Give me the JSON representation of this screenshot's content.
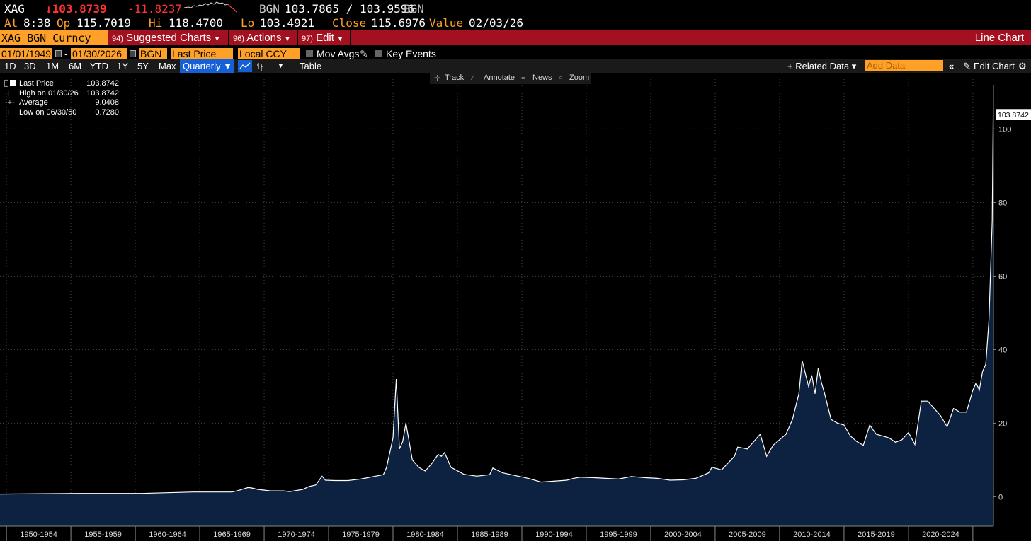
{
  "quote": {
    "ticker": "XAG",
    "last": "↓103.8739",
    "change": "-11.8237",
    "source": "BGN",
    "bid_ask": "103.7865 / 103.9596",
    "source2": "BGN",
    "at_label": "At",
    "time": "8:38",
    "open_label": "Op",
    "open": "115.7019",
    "high_label": "Hi",
    "high": "118.4700",
    "low_label": "Lo",
    "low": "103.4921",
    "close_label": "Close",
    "close": "115.6976",
    "value_label": "Value",
    "value_date": "02/03/26"
  },
  "command_bar": {
    "security": "XAG BGN Curncy",
    "items": [
      {
        "num": "94)",
        "label": "Suggested Charts"
      },
      {
        "num": "96)",
        "label": "Actions"
      },
      {
        "num": "97)",
        "label": "Edit"
      }
    ],
    "chart_type": "Line Chart"
  },
  "settings": {
    "start_date": "01/01/1949",
    "dash": "-",
    "end_date": "01/30/2026",
    "source": "BGN",
    "field": "Last Price",
    "currency": "Local CCY",
    "mov_avgs": "Mov Avgs",
    "key_events": "Key Events"
  },
  "toolbar": {
    "periods": [
      "1D",
      "3D",
      "1M",
      "6M",
      "YTD",
      "1Y",
      "5Y",
      "Max"
    ],
    "frequency": "Quarterly ▼",
    "table": "Table",
    "related_data": "+ Related Data ▾",
    "add_data_placeholder": "Add Data",
    "edit_chart": "Edit Chart"
  },
  "tools": {
    "track": "Track",
    "annotate": "Annotate",
    "news": "News",
    "zoom": "Zoom"
  },
  "legend": {
    "rows": [
      {
        "key": "Last Price",
        "value": "103.8742"
      },
      {
        "key": "High on 01/30/26",
        "value": "103.8742"
      },
      {
        "key": "Average",
        "value": "9.0408"
      },
      {
        "key": "Low on 06/30/50",
        "value": "0.7280"
      }
    ]
  },
  "colors": {
    "line": "#ffffff",
    "area": "#0c2240",
    "grid": "#444444",
    "accent_orange": "#ffa028",
    "accent_red": "#a3101f"
  },
  "chart_data": {
    "type": "area",
    "title": "",
    "xlabel": "",
    "ylabel": "",
    "ylim": [
      -8,
      112
    ],
    "yticks": [
      0,
      20,
      40,
      60,
      80,
      100
    ],
    "last_value_label": "103.8742",
    "x_tick_labels": [
      "1950-1954",
      "1955-1959",
      "1960-1964",
      "1965-1969",
      "1970-1974",
      "1975-1979",
      "1980-1984",
      "1985-1989",
      "1990-1994",
      "1995-1999",
      "2000-2004",
      "2005-2009",
      "2010-2014",
      "2015-2019",
      "2020-2024"
    ],
    "xlim": [
      1949.0,
      2026.1
    ],
    "series": [
      {
        "x": [
          1949.0,
          1955.0,
          1960.0,
          1963.0,
          1964.0,
          1967.0,
          1967.5,
          1968.25,
          1968.5,
          1969.0,
          1970.0,
          1971.0,
          1971.5,
          1972.5,
          1973.0,
          1973.5,
          1974.0,
          1974.25,
          1975.0,
          1976.0,
          1977.0,
          1978.0,
          1978.75,
          1979.0,
          1979.5,
          1979.75,
          1980.0,
          1980.25,
          1980.5,
          1980.75,
          1981.0,
          1981.5,
          1982.0,
          1982.5,
          1983.0,
          1983.25,
          1983.5,
          1984.0,
          1985.0,
          1986.0,
          1987.0,
          1987.25,
          1988.0,
          1990.0,
          1991.0,
          1993.0,
          1993.5,
          1994.0,
          1995.0,
          1996.0,
          1997.0,
          1998.0,
          1999.0,
          2000.0,
          2001.0,
          2002.0,
          2003.0,
          2004.0,
          2004.25,
          2005.0,
          2006.0,
          2006.25,
          2007.0,
          2008.0,
          2008.5,
          2009.0,
          2010.0,
          2010.5,
          2011.0,
          2011.25,
          2011.75,
          2012.0,
          2012.25,
          2012.5,
          2012.75,
          2013.0,
          2013.5,
          2014.0,
          2014.5,
          2015.0,
          2015.5,
          2016.0,
          2016.5,
          2017.0,
          2017.5,
          2018.0,
          2018.5,
          2019.0,
          2019.5,
          2020.0,
          2020.5,
          2021.0,
          2021.5,
          2022.0,
          2022.5,
          2023.0,
          2023.5,
          2024.0,
          2024.5,
          2024.75,
          2025.0,
          2025.25,
          2025.5,
          2025.75,
          2026.0,
          2026.08
        ],
        "y": [
          0.728,
          0.9,
          0.91,
          1.2,
          1.29,
          1.29,
          1.7,
          2.5,
          2.4,
          2.0,
          1.6,
          1.6,
          1.4,
          2.0,
          2.8,
          3.2,
          5.6,
          4.5,
          4.4,
          4.4,
          4.8,
          5.5,
          6.0,
          8.0,
          16.0,
          32.0,
          13.0,
          15.0,
          20.0,
          15.0,
          10.0,
          8.0,
          7.0,
          9.0,
          11.5,
          11.0,
          12.0,
          8.0,
          6.1,
          5.6,
          6.0,
          7.8,
          6.5,
          5.0,
          4.0,
          4.5,
          5.0,
          5.3,
          5.2,
          5.0,
          4.8,
          5.5,
          5.2,
          5.0,
          4.5,
          4.6,
          5.0,
          6.5,
          8.0,
          7.3,
          11.0,
          13.5,
          13.0,
          17.0,
          11.0,
          14.0,
          17.0,
          21.0,
          28.0,
          37.0,
          30.0,
          33.0,
          28.0,
          35.0,
          31.0,
          28.0,
          21.0,
          20.0,
          19.5,
          16.5,
          15.0,
          14.0,
          19.5,
          17.0,
          16.5,
          16.0,
          14.8,
          15.5,
          17.5,
          14.2,
          26.0,
          26.0,
          24.0,
          22.0,
          19.0,
          24.0,
          23.0,
          23.0,
          29.0,
          31.0,
          29.0,
          34.0,
          36.0,
          48.0,
          75.0,
          103.87
        ]
      }
    ]
  }
}
